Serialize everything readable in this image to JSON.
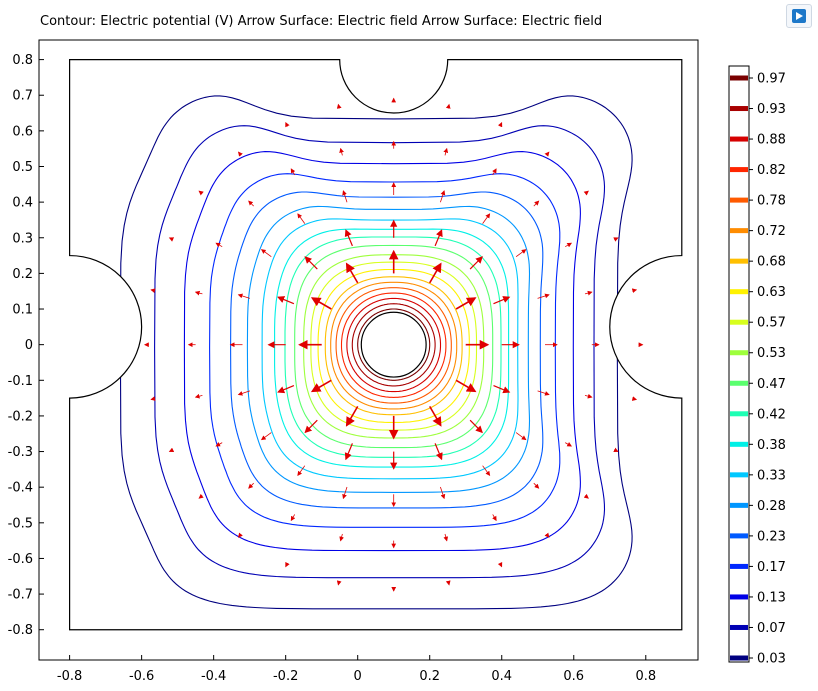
{
  "title": "Contour: Electric potential (V)  Arrow Surface: Electric field  Arrow Surface: Electric field",
  "toolbar": {
    "corner_icon": "image-export-icon"
  },
  "chart_data": {
    "type": "contour",
    "title": "Contour: Electric potential (V)  Arrow Surface: Electric field  Arrow Surface: Electric field",
    "xlabel": "",
    "ylabel": "",
    "xlim": [
      -0.885,
      0.945
    ],
    "ylim": [
      -0.885,
      0.855
    ],
    "x_ticks": [
      "-0.8",
      "-0.6",
      "-0.4",
      "-0.2",
      "0",
      "0.2",
      "0.4",
      "0.6",
      "0.8"
    ],
    "y_ticks": [
      "0.8",
      "0.7",
      "0.6",
      "0.5",
      "0.4",
      "0.3",
      "0.2",
      "0.1",
      "0",
      "-0.1",
      "-0.2",
      "-0.3",
      "-0.4",
      "-0.5",
      "-0.6",
      "-0.7",
      "-0.8"
    ],
    "grid": false,
    "legend": "right",
    "center_electrode": {
      "x": 0.1,
      "y": 0.0,
      "r": 0.09
    },
    "levels": [
      {
        "value": 0.97,
        "label": "0.97",
        "color": "#7a0000"
      },
      {
        "value": 0.93,
        "label": "0.93",
        "color": "#a80000"
      },
      {
        "value": 0.88,
        "label": "0.88",
        "color": "#d60000"
      },
      {
        "value": 0.82,
        "label": "0.82",
        "color": "#ff2600"
      },
      {
        "value": 0.78,
        "label": "0.78",
        "color": "#ff5a00"
      },
      {
        "value": 0.72,
        "label": "0.72",
        "color": "#ff8c00"
      },
      {
        "value": 0.68,
        "label": "0.68",
        "color": "#ffbf00"
      },
      {
        "value": 0.63,
        "label": "0.63",
        "color": "#fff200"
      },
      {
        "value": 0.57,
        "label": "0.57",
        "color": "#d8ff1e"
      },
      {
        "value": 0.53,
        "label": "0.53",
        "color": "#9eff3c"
      },
      {
        "value": 0.47,
        "label": "0.47",
        "color": "#5aff6e"
      },
      {
        "value": 0.42,
        "label": "0.42",
        "color": "#1effb4"
      },
      {
        "value": 0.38,
        "label": "0.38",
        "color": "#00f0e6"
      },
      {
        "value": 0.33,
        "label": "0.33",
        "color": "#00c8ff"
      },
      {
        "value": 0.28,
        "label": "0.28",
        "color": "#0096ff"
      },
      {
        "value": 0.23,
        "label": "0.23",
        "color": "#005aff"
      },
      {
        "value": 0.17,
        "label": "0.17",
        "color": "#0028ff"
      },
      {
        "value": 0.13,
        "label": "0.13",
        "color": "#0000e6"
      },
      {
        "value": 0.07,
        "label": "0.07",
        "color": "#0000b4"
      },
      {
        "value": 0.03,
        "label": "0.03",
        "color": "#000080"
      }
    ],
    "contour_radii": [
      0.1,
      0.115,
      0.13,
      0.145,
      0.16,
      0.175,
      0.19,
      0.21,
      0.23,
      0.25,
      0.275,
      0.3,
      0.325,
      0.355,
      0.39,
      0.43,
      0.48,
      0.54,
      0.61,
      0.69
    ],
    "domain_outline": {
      "x_range": [
        -0.8,
        0.9
      ],
      "y_range": [
        -0.8,
        0.8
      ],
      "top_notch": {
        "cx": 0.1,
        "cy": 0.8,
        "r": 0.15
      },
      "left_notch": {
        "cx": -0.8,
        "cy": 0.05,
        "r": 0.2
      },
      "right_notch": {
        "cx": 0.9,
        "cy": 0.05,
        "r": 0.2
      }
    },
    "arrow_field": {
      "color": "#e00000",
      "rings": [
        0.2,
        0.3,
        0.42,
        0.55,
        0.68
      ],
      "count": 12
    }
  }
}
